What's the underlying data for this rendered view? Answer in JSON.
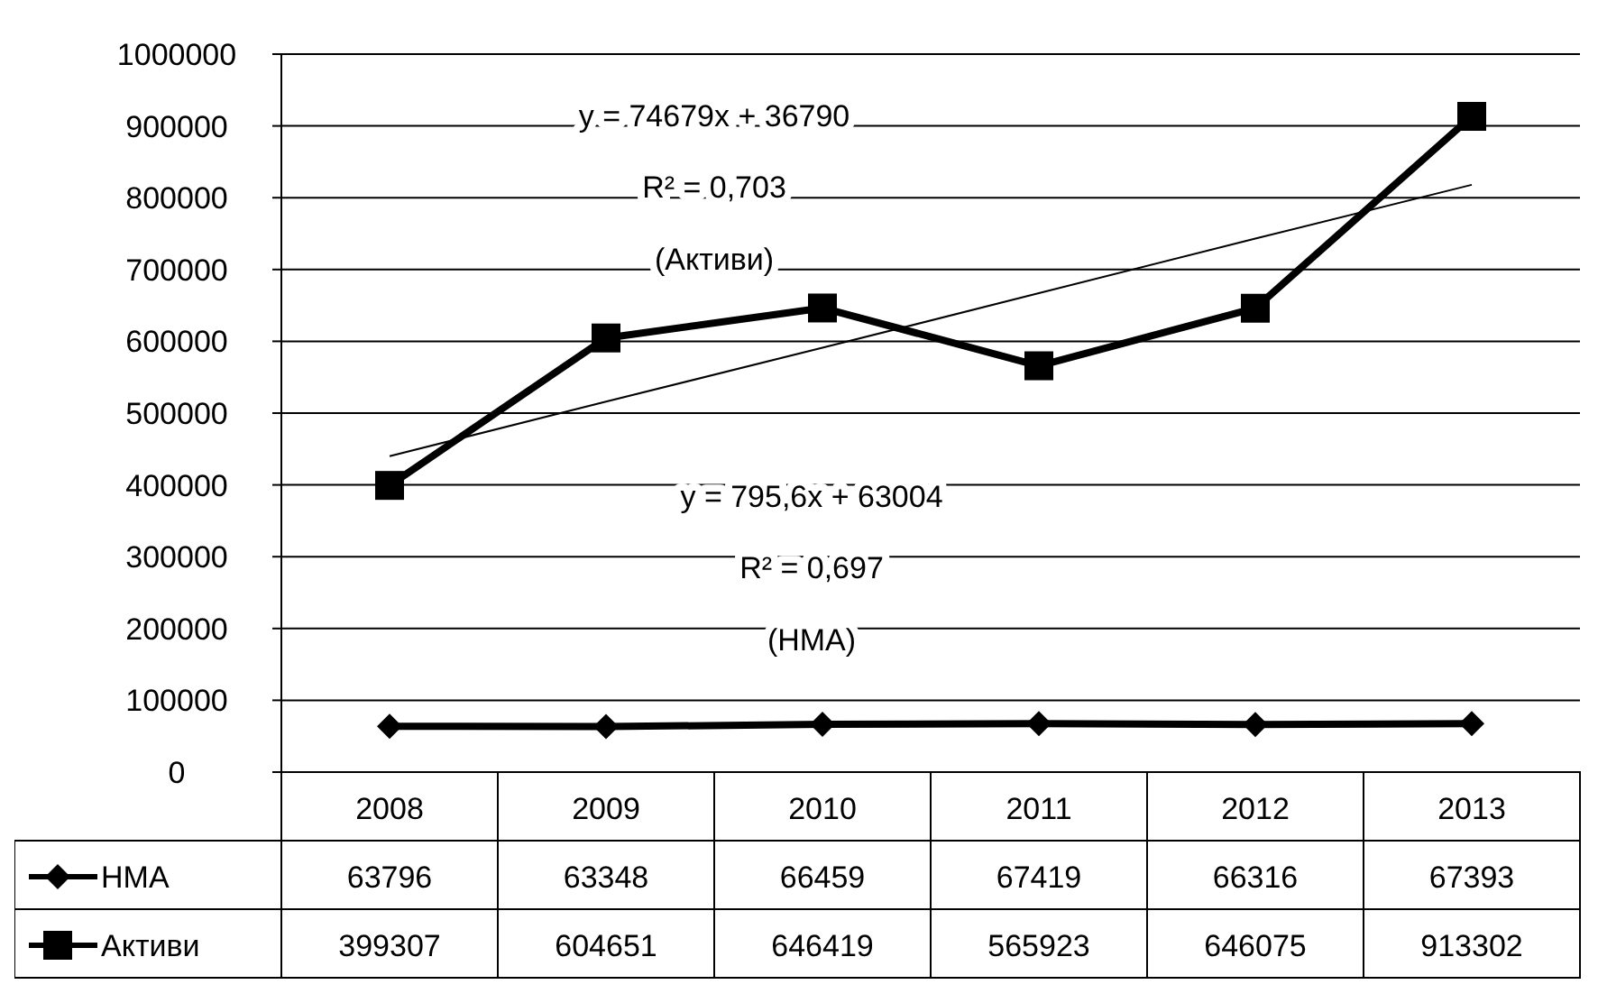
{
  "chart_data": {
    "type": "line",
    "categories": [
      "2008",
      "2009",
      "2010",
      "2011",
      "2012",
      "2013"
    ],
    "series": [
      {
        "name": "НМА",
        "color": "#000000",
        "marker": "diamond",
        "values": [
          63796,
          63348,
          66459,
          67419,
          66316,
          67393
        ],
        "value_labels": [
          "63796",
          "63348",
          "66459",
          "67419",
          "66316",
          "67393"
        ]
      },
      {
        "name": "Активи",
        "color": "#000000",
        "marker": "square",
        "values": [
          399307,
          604651,
          646419,
          565923,
          646075,
          913302
        ],
        "value_labels": [
          "399307",
          "604651",
          "646419",
          "565923",
          "646075",
          "913302"
        ]
      },
      {
        "type": "line",
        "color": "#000000",
        "values": [
          440000,
          516000,
          591000,
          667000,
          743000,
          818000
        ]
      }
    ],
    "ylim": [
      0,
      1000000
    ],
    "yticks": [
      0,
      100000,
      200000,
      300000,
      400000,
      500000,
      600000,
      700000,
      800000,
      900000,
      1000000
    ],
    "grid": "y",
    "legend": "bottom",
    "annotations": [
      "y = 74679x + 36790",
      "R² = 0,703",
      "(Активи)",
      "y = 795,6x + 63004",
      "R² = 0,697",
      "(НМА)"
    ]
  }
}
